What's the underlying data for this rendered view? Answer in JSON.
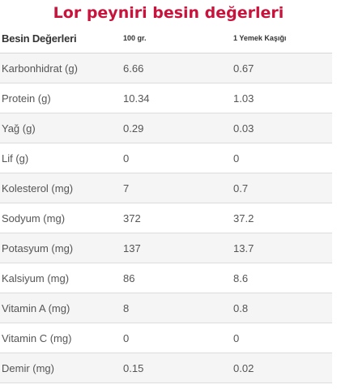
{
  "title": "Lor peyniri besin değerleri",
  "table": {
    "headers": [
      "Besin Değerleri",
      "100 gr.",
      "1 Yemek Kaşığı"
    ],
    "rows": [
      [
        "Karbonhidrat (g)",
        "6.66",
        "0.67"
      ],
      [
        "Protein (g)",
        "10.34",
        "1.03"
      ],
      [
        "Yağ (g)",
        "0.29",
        "0.03"
      ],
      [
        "Lif (g)",
        "0",
        "0"
      ],
      [
        "Kolesterol (mg)",
        "7",
        "0.7"
      ],
      [
        "Sodyum (mg)",
        "372",
        "37.2"
      ],
      [
        "Potasyum (mg)",
        "137",
        "13.7"
      ],
      [
        "Kalsiyum (mg)",
        "86",
        "8.6"
      ],
      [
        "Vitamin A (mg)",
        "8",
        "0.8"
      ],
      [
        "Vitamin C (mg)",
        "0",
        "0"
      ],
      [
        "Demir (mg)",
        "0.15",
        "0.02"
      ]
    ]
  },
  "colors": {
    "title": "#c8143c",
    "text": "#555555",
    "row_alt": "#f5f5f5",
    "divider": "#dcdcdc"
  }
}
